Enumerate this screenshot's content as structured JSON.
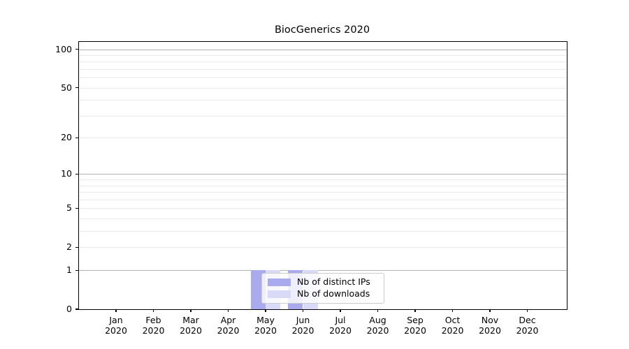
{
  "title": "BiocGenerics 2020",
  "chart_data": {
    "type": "bar",
    "title": "BiocGenerics 2020",
    "categories": [
      "Jan 2020",
      "Feb 2020",
      "Mar 2020",
      "Apr 2020",
      "May 2020",
      "Jun 2020",
      "Jul 2020",
      "Aug 2020",
      "Sep 2020",
      "Oct 2020",
      "Nov 2020",
      "Dec 2020"
    ],
    "series": [
      {
        "name": "Nb of distinct IPs",
        "color": "#aaabef",
        "values": [
          0,
          0,
          0,
          0,
          1,
          1,
          0,
          0,
          0,
          0,
          0,
          0
        ]
      },
      {
        "name": "Nb of downloads",
        "color": "#d8daf7",
        "values": [
          0,
          0,
          0,
          0,
          1,
          1,
          0,
          0,
          0,
          0,
          0,
          0
        ]
      }
    ],
    "y_axis": {
      "scale": "log10(1+x)",
      "ticks": [
        0,
        1,
        2,
        5,
        10,
        20,
        50,
        100
      ],
      "major_gridlines": [
        1,
        10,
        100
      ],
      "minor_gridlines": [
        2,
        3,
        4,
        5,
        6,
        7,
        8,
        9,
        20,
        30,
        40,
        50,
        60,
        70,
        80,
        90
      ],
      "ylim": [
        0,
        114
      ]
    },
    "grid": true,
    "legend_position": "lower center"
  },
  "legend": {
    "items": [
      {
        "label": "Nb of distinct IPs"
      },
      {
        "label": "Nb of downloads"
      }
    ]
  },
  "colors": {
    "bar_distinct_ips": "#aaabef",
    "bar_downloads": "#d8daf7",
    "grid_minor": "#eaeaea",
    "grid_major": "#b3b3b3",
    "spine": "#000000",
    "legend_border": "#cccccc"
  }
}
